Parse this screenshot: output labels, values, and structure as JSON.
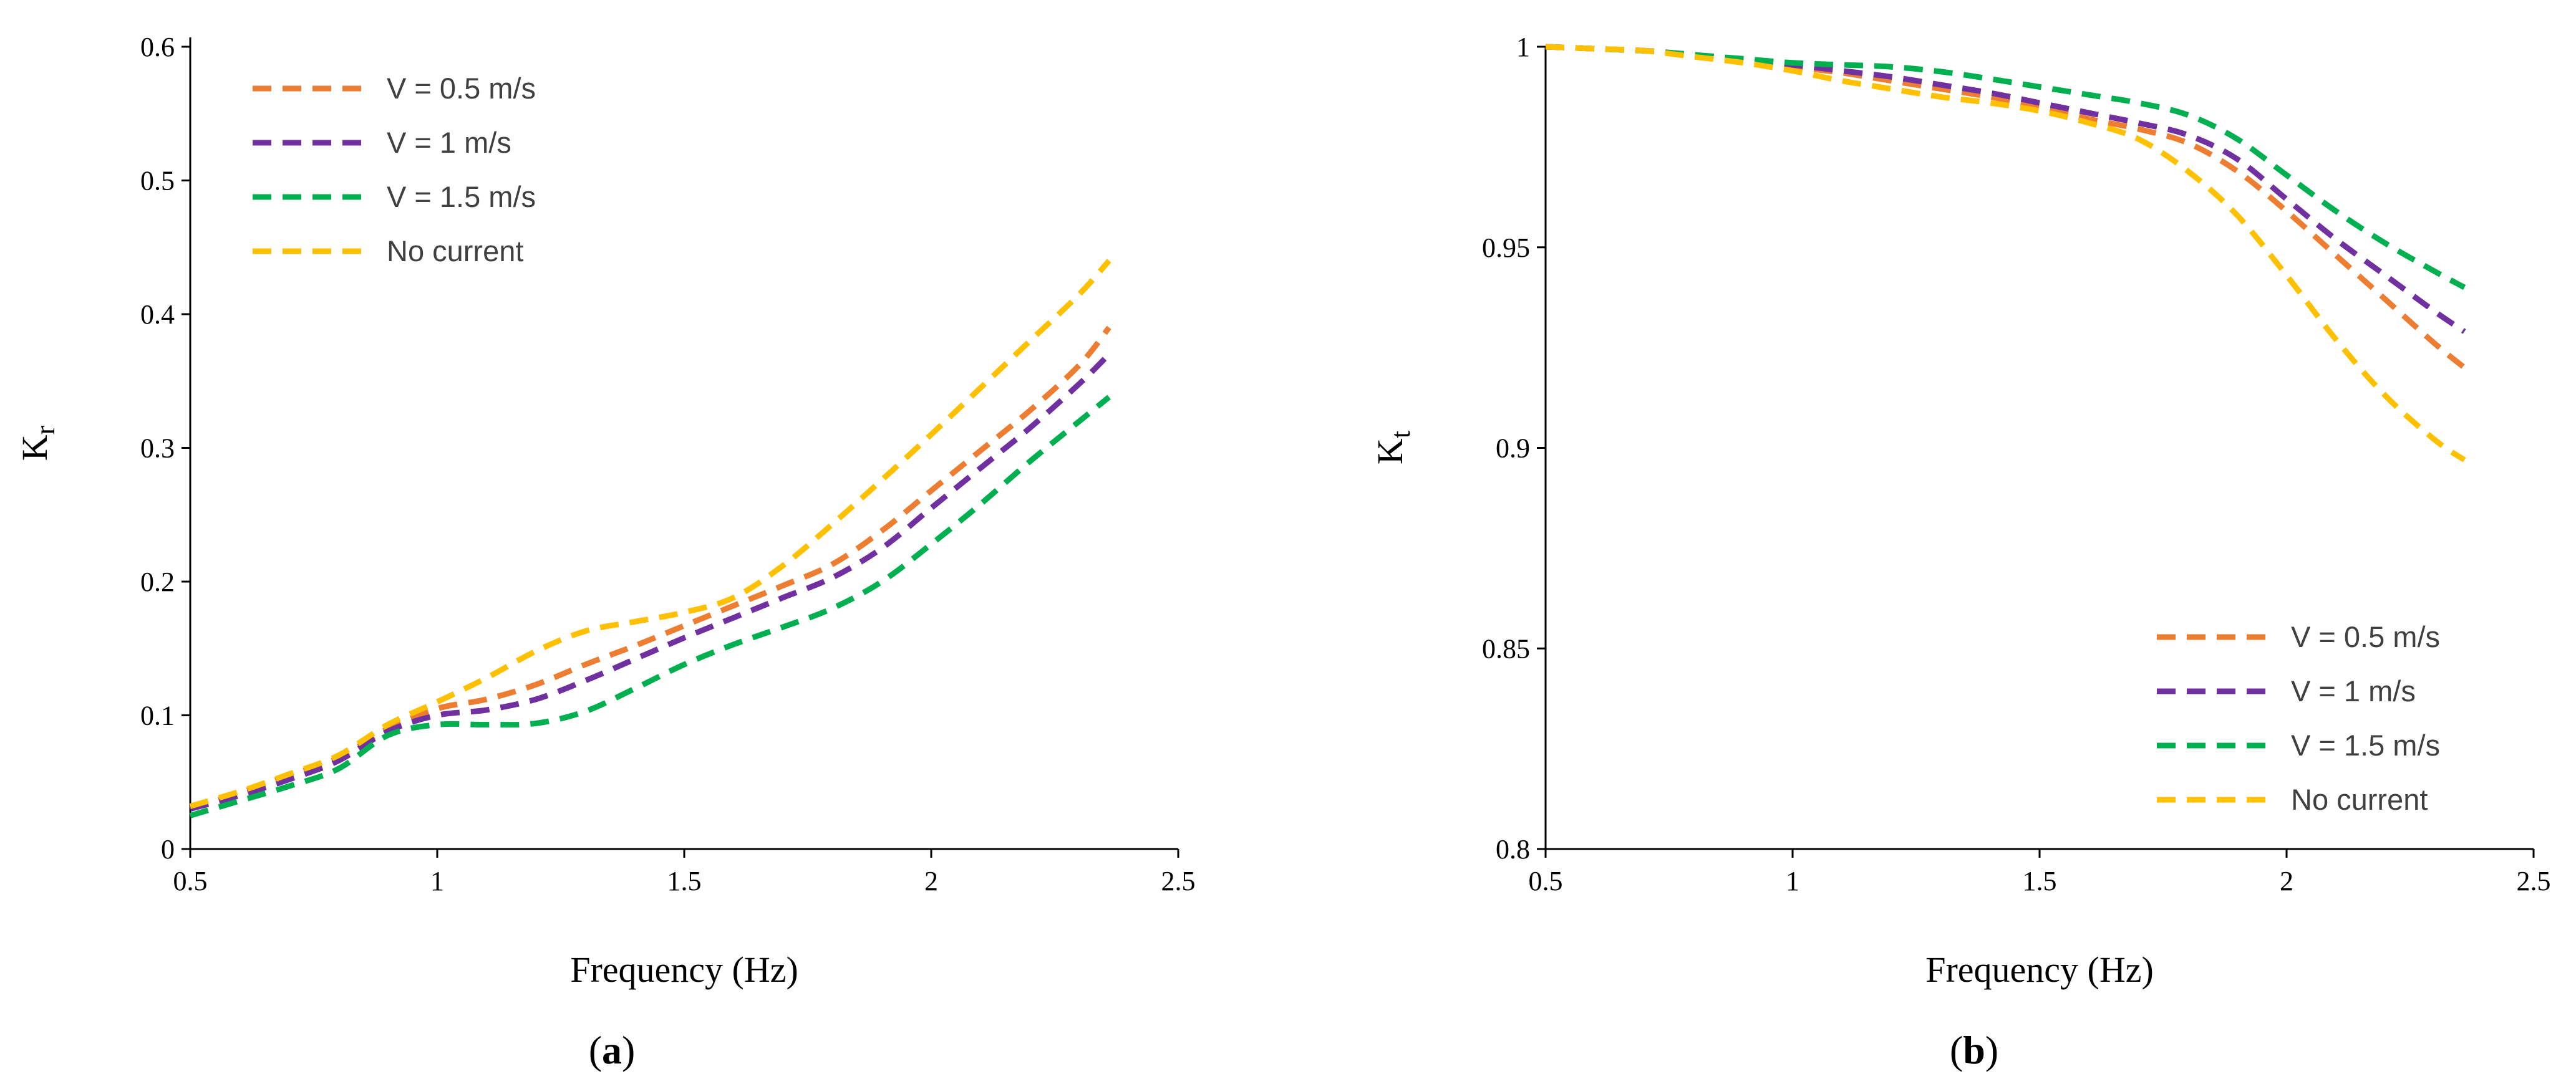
{
  "chart_data": [
    {
      "type": "line",
      "panel_label": "a",
      "xlabel": "Frequency (Hz)",
      "ylabel_main": "K",
      "ylabel_sub": "r",
      "xlim": [
        0.5,
        2.5
      ],
      "ylim": [
        0,
        0.6
      ],
      "xticks": [
        "0.5",
        "1",
        "1.5",
        "2",
        "2.5"
      ],
      "yticks": [
        "0",
        "0.1",
        "0.2",
        "0.3",
        "0.4",
        "0.5",
        "0.6"
      ],
      "grid": false,
      "legend_position": "top-left",
      "series": [
        {
          "name": "V = 0.5 m/s",
          "color": "#ED7D31",
          "x": [
            0.5,
            0.6,
            0.7,
            0.8,
            0.9,
            1.0,
            1.1,
            1.2,
            1.3,
            1.4,
            1.5,
            1.6,
            1.7,
            1.8,
            1.9,
            2.0,
            2.1,
            2.2,
            2.3,
            2.36
          ],
          "y": [
            0.03,
            0.042,
            0.055,
            0.068,
            0.09,
            0.105,
            0.112,
            0.123,
            0.138,
            0.152,
            0.167,
            0.182,
            0.197,
            0.213,
            0.238,
            0.268,
            0.298,
            0.328,
            0.362,
            0.39
          ]
        },
        {
          "name": "V = 1 m/s",
          "color": "#7030A0",
          "x": [
            0.5,
            0.6,
            0.7,
            0.8,
            0.9,
            1.0,
            1.1,
            1.2,
            1.3,
            1.4,
            1.5,
            1.6,
            1.7,
            1.8,
            1.9,
            2.0,
            2.1,
            2.2,
            2.3,
            2.36
          ],
          "y": [
            0.03,
            0.04,
            0.052,
            0.066,
            0.088,
            0.1,
            0.104,
            0.112,
            0.126,
            0.142,
            0.158,
            0.173,
            0.188,
            0.203,
            0.225,
            0.255,
            0.285,
            0.315,
            0.348,
            0.37
          ]
        },
        {
          "name": "V = 1.5 m/s",
          "color": "#00B050",
          "x": [
            0.5,
            0.6,
            0.7,
            0.8,
            0.9,
            1.0,
            1.1,
            1.2,
            1.3,
            1.4,
            1.5,
            1.6,
            1.7,
            1.8,
            1.9,
            2.0,
            2.1,
            2.2,
            2.3,
            2.36
          ],
          "y": [
            0.025,
            0.036,
            0.047,
            0.06,
            0.085,
            0.093,
            0.093,
            0.094,
            0.103,
            0.12,
            0.138,
            0.153,
            0.166,
            0.18,
            0.2,
            0.228,
            0.258,
            0.29,
            0.32,
            0.338
          ]
        },
        {
          "name": "No current",
          "color": "#FFC000",
          "x": [
            0.5,
            0.6,
            0.7,
            0.8,
            0.9,
            1.0,
            1.1,
            1.2,
            1.3,
            1.4,
            1.5,
            1.6,
            1.7,
            1.8,
            1.9,
            2.0,
            2.1,
            2.2,
            2.3,
            2.36
          ],
          "y": [
            0.032,
            0.043,
            0.056,
            0.07,
            0.093,
            0.11,
            0.128,
            0.148,
            0.163,
            0.17,
            0.177,
            0.188,
            0.212,
            0.243,
            0.276,
            0.31,
            0.345,
            0.38,
            0.415,
            0.44
          ]
        }
      ]
    },
    {
      "type": "line",
      "panel_label": "b",
      "xlabel": "Frequency (Hz)",
      "ylabel_main": "K",
      "ylabel_sub": "t",
      "xlim": [
        0.5,
        2.5
      ],
      "ylim": [
        0.8,
        1.0
      ],
      "xticks": [
        "0.5",
        "1",
        "1.5",
        "2",
        "2.5"
      ],
      "yticks": [
        "0.8",
        "0.85",
        "0.9",
        "0.95",
        "1"
      ],
      "grid": false,
      "legend_position": "bottom-right",
      "series": [
        {
          "name": "V = 0.5 m/s",
          "color": "#ED7D31",
          "x": [
            0.5,
            0.6,
            0.7,
            0.8,
            0.9,
            1.0,
            1.1,
            1.2,
            1.3,
            1.4,
            1.5,
            1.6,
            1.7,
            1.8,
            1.9,
            2.0,
            2.1,
            2.2,
            2.3,
            2.36
          ],
          "y": [
            1.0,
            0.9995,
            0.999,
            0.998,
            0.9965,
            0.995,
            0.9935,
            0.9915,
            0.9895,
            0.9875,
            0.985,
            0.982,
            0.9795,
            0.976,
            0.969,
            0.959,
            0.948,
            0.937,
            0.926,
            0.92
          ]
        },
        {
          "name": "V = 1 m/s",
          "color": "#7030A0",
          "x": [
            0.5,
            0.6,
            0.7,
            0.8,
            0.9,
            1.0,
            1.1,
            1.2,
            1.3,
            1.4,
            1.5,
            1.6,
            1.7,
            1.8,
            1.9,
            2.0,
            2.1,
            2.2,
            2.3,
            2.36
          ],
          "y": [
            1.0,
            0.9995,
            0.999,
            0.998,
            0.9968,
            0.9955,
            0.994,
            0.9925,
            0.9905,
            0.9885,
            0.986,
            0.9835,
            0.981,
            0.978,
            0.972,
            0.962,
            0.952,
            0.943,
            0.934,
            0.929
          ]
        },
        {
          "name": "V = 1.5 m/s",
          "color": "#00B050",
          "x": [
            0.5,
            0.6,
            0.7,
            0.8,
            0.9,
            1.0,
            1.1,
            1.2,
            1.3,
            1.4,
            1.5,
            1.6,
            1.7,
            1.8,
            1.9,
            2.0,
            2.1,
            2.2,
            2.3,
            2.36
          ],
          "y": [
            1.0,
            0.9995,
            0.999,
            0.998,
            0.997,
            0.996,
            0.9955,
            0.995,
            0.9938,
            0.992,
            0.99,
            0.988,
            0.986,
            0.983,
            0.977,
            0.968,
            0.959,
            0.951,
            0.944,
            0.94
          ]
        },
        {
          "name": "No current",
          "color": "#FFC000",
          "x": [
            0.5,
            0.6,
            0.7,
            0.8,
            0.9,
            1.0,
            1.1,
            1.2,
            1.3,
            1.4,
            1.5,
            1.6,
            1.7,
            1.8,
            1.9,
            2.0,
            2.1,
            2.2,
            2.3,
            2.36
          ],
          "y": [
            1.0,
            0.9995,
            0.999,
            0.9975,
            0.996,
            0.994,
            0.9915,
            0.9895,
            0.9875,
            0.986,
            0.984,
            0.981,
            0.977,
            0.969,
            0.958,
            0.943,
            0.927,
            0.913,
            0.902,
            0.897
          ]
        }
      ]
    }
  ]
}
